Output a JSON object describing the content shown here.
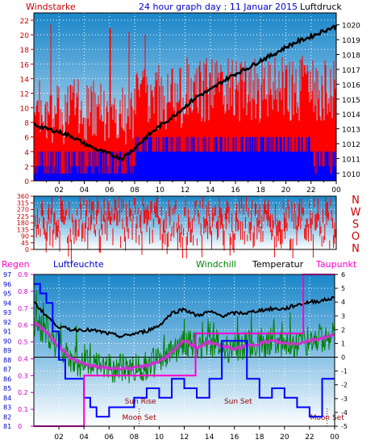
{
  "header": {
    "title": "24 hour graph day : 11 Januar 2015",
    "left_label": "Windstarke",
    "right_label": "Luftdruck"
  },
  "colors": {
    "gust": "#ff0000",
    "wind": "#0000ff",
    "pressure": "#000000",
    "direction": "#ff0000",
    "rain": "#ff00cc",
    "humidity": "#0000ff",
    "windchill": "#008000",
    "temperature": "#000000",
    "dewpoint": "#cc33cc",
    "axis_red": "#cc0000",
    "annotation": "#990000"
  },
  "legend": {
    "rain": "Regen",
    "humidity": "Luftfeuchte",
    "windchill": "Windchill",
    "temperature": "Temperatur",
    "dewpoint": "Taupunkt"
  },
  "compass": [
    "N",
    "W",
    "S",
    "O",
    "N"
  ],
  "chart_data": [
    {
      "type": "line",
      "panel": "wind_pressure",
      "x_ticks": [
        "02",
        "04",
        "06",
        "08",
        "10",
        "12",
        "14",
        "16",
        "18",
        "20",
        "22",
        "00"
      ],
      "y_left_ticks": [
        "0",
        "2",
        "4",
        "6",
        "8",
        "10",
        "12",
        "14",
        "16",
        "18",
        "20",
        "22"
      ],
      "y_left_range": [
        0,
        23
      ],
      "y_right_ticks": [
        "1010",
        "1011",
        "1012",
        "1013",
        "1014",
        "1015",
        "1016",
        "1017",
        "1018",
        "1019",
        "1020"
      ],
      "y_right_range": [
        1009.5,
        1020.8
      ],
      "series": [
        {
          "key": "pressure",
          "axis": "right",
          "x": [
            0,
            1,
            2,
            3,
            4,
            5,
            6,
            7,
            8,
            9,
            10,
            11,
            12,
            13,
            14,
            15,
            16,
            17,
            18,
            19,
            20,
            21,
            22,
            23,
            24
          ],
          "values": [
            1013.3,
            1013.0,
            1012.8,
            1012.5,
            1012.0,
            1011.6,
            1011.3,
            1011.0,
            1011.7,
            1012.5,
            1013.2,
            1013.8,
            1014.5,
            1015.2,
            1015.6,
            1016.2,
            1016.7,
            1017.1,
            1017.6,
            1018.0,
            1018.5,
            1018.9,
            1019.2,
            1019.6,
            1019.9
          ]
        }
      ]
    },
    {
      "type": "scatter",
      "panel": "wind_direction",
      "y_ticks": [
        "0",
        "45",
        "90",
        "135",
        "180",
        "225",
        "270",
        "315",
        "360"
      ],
      "y_range": [
        0,
        360
      ]
    },
    {
      "type": "line",
      "panel": "humidity_temperature",
      "y_left_ticks": [
        "81",
        "82",
        "83",
        "84",
        "85",
        "86",
        "87",
        "88",
        "89",
        "90",
        "91",
        "92",
        "93",
        "94",
        "95",
        "96",
        "97"
      ],
      "y_left_range": [
        81,
        97
      ],
      "y_rain_ticks": [
        "0",
        "0.1",
        "0.2",
        "0.3",
        "0.4",
        "0.5",
        "0.6",
        "0.7",
        "0.8",
        "0.9"
      ],
      "y_rain_range": [
        0,
        0.9
      ],
      "y_right_ticks": [
        "-5",
        "-4",
        "-3",
        "-2",
        "-1",
        "0",
        "1",
        "2",
        "3",
        "4",
        "5",
        "6"
      ],
      "y_right_range": [
        -5,
        6
      ],
      "series": [
        {
          "key": "humidity",
          "x": [
            0,
            0.5,
            1,
            1.5,
            2,
            2.5,
            3,
            3.5,
            4,
            4.5,
            5,
            5.5,
            6,
            7,
            8,
            9,
            10,
            11,
            12,
            13,
            14,
            15,
            16,
            17,
            18,
            19,
            20,
            21,
            22,
            23,
            24
          ],
          "values": [
            96,
            95,
            94,
            91,
            88,
            86,
            86,
            86,
            84,
            83,
            82,
            82,
            83,
            83,
            84,
            85,
            84,
            86,
            85,
            84,
            86,
            90,
            90,
            86,
            84,
            85,
            84,
            83,
            82,
            86,
            86
          ]
        },
        {
          "key": "temperature",
          "x": [
            0,
            1,
            2,
            3,
            4,
            5,
            6,
            7,
            8,
            9,
            10,
            11,
            12,
            13,
            14,
            15,
            16,
            17,
            18,
            19,
            20,
            21,
            22,
            23,
            24
          ],
          "values": [
            4.0,
            3.0,
            2.2,
            2.0,
            2.0,
            1.9,
            1.7,
            1.5,
            1.7,
            1.9,
            2.3,
            3.2,
            3.5,
            3.0,
            3.3,
            3.0,
            3.2,
            3.2,
            3.4,
            3.5,
            3.5,
            3.8,
            4.0,
            4.1,
            4.3
          ]
        },
        {
          "key": "dewpoint",
          "x": [
            0,
            1,
            2,
            3,
            4,
            5,
            6,
            7,
            8,
            9,
            10,
            11,
            12,
            13,
            14,
            15,
            16,
            17,
            18,
            19,
            20,
            21,
            22,
            23,
            24
          ],
          "values": [
            2.6,
            1.8,
            0.8,
            -0.1,
            -0.5,
            -0.7,
            -0.8,
            -0.8,
            -0.8,
            -0.6,
            -0.3,
            0.3,
            1.2,
            0.7,
            1.1,
            0.8,
            0.6,
            0.8,
            1.0,
            1.2,
            1.0,
            1.0,
            1.2,
            1.4,
            1.6
          ]
        },
        {
          "key": "rain",
          "x": [
            0,
            4,
            4,
            8.5,
            8.5,
            12.9,
            12.9,
            21.5,
            21.5,
            24
          ],
          "values": [
            0,
            0,
            0.3,
            0.3,
            0.3,
            0.3,
            0.55,
            0.55,
            0.9,
            0.9
          ]
        }
      ],
      "annotations": [
        {
          "text": "Sun Rise",
          "x": 8.5,
          "row": "upper"
        },
        {
          "text": "Moon Set",
          "x": 8.4,
          "row": "lower"
        },
        {
          "text": "Sun Set",
          "x": 16.3,
          "row": "upper"
        },
        {
          "text": "Moon Set",
          "x": 23.4,
          "row": "lower"
        }
      ]
    }
  ]
}
